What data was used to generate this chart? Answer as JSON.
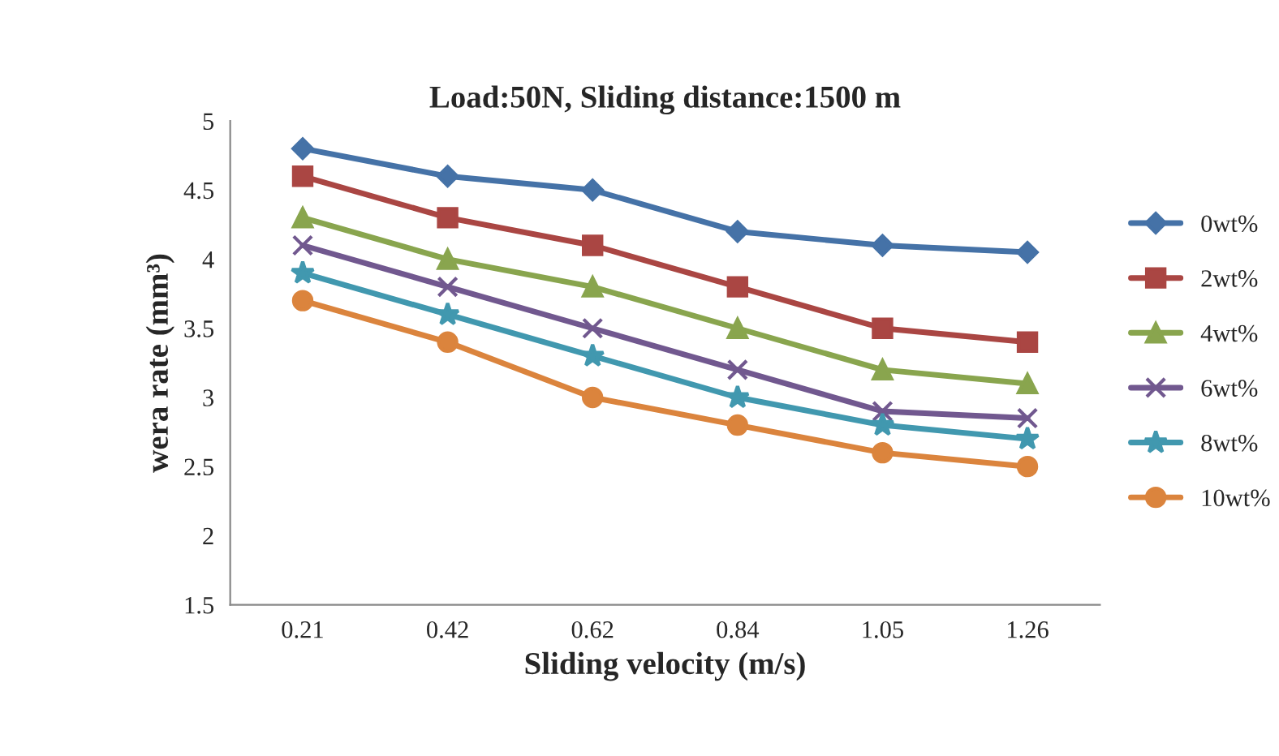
{
  "chart_data": {
    "type": "line",
    "title": "Load:50N, Sliding distance:1500 m",
    "xlabel": "Sliding velocity (m/s)",
    "ylabel": "wera rate (mm³)",
    "categories": [
      "0.21",
      "0.42",
      "0.62",
      "0.84",
      "1.05",
      "1.26"
    ],
    "ylim": [
      1.5,
      5
    ],
    "yticks": [
      1.5,
      2,
      2.5,
      3,
      3.5,
      4,
      4.5,
      5
    ],
    "grid": false,
    "legend": "right",
    "line_style": "solid",
    "series": [
      {
        "name": "0wt%",
        "color": "#4572a7",
        "marker": "diamond",
        "values": [
          4.8,
          4.6,
          4.5,
          4.2,
          4.1,
          4.05
        ]
      },
      {
        "name": "2wt%",
        "color": "#aa4643",
        "marker": "square",
        "values": [
          4.6,
          4.3,
          4.1,
          3.8,
          3.5,
          3.4
        ]
      },
      {
        "name": "4wt%",
        "color": "#89a54e",
        "marker": "triangle",
        "values": [
          4.3,
          4.0,
          3.8,
          3.5,
          3.2,
          3.1
        ]
      },
      {
        "name": "6wt%",
        "color": "#71588f",
        "marker": "cross",
        "values": [
          4.1,
          3.8,
          3.5,
          3.2,
          2.9,
          2.85
        ]
      },
      {
        "name": "8wt%",
        "color": "#4198af",
        "marker": "star",
        "values": [
          3.9,
          3.6,
          3.3,
          3.0,
          2.8,
          2.7
        ]
      },
      {
        "name": "10wt%",
        "color": "#db843d",
        "marker": "circle",
        "values": [
          3.7,
          3.4,
          3.0,
          2.8,
          2.6,
          2.5
        ]
      }
    ]
  }
}
